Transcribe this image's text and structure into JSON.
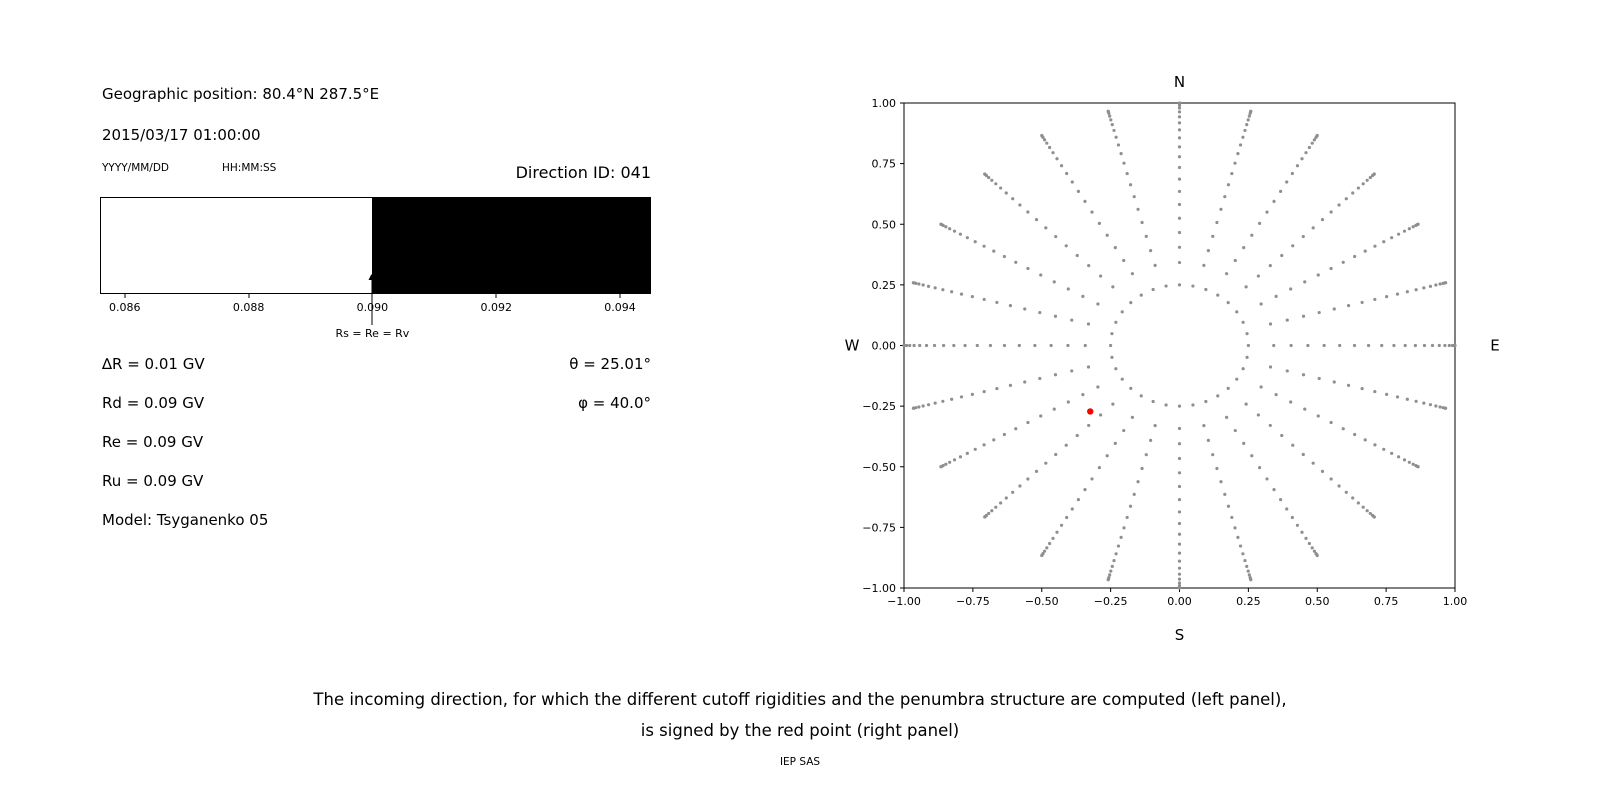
{
  "header": {
    "geo_position": "Geographic position: 80.4°N 287.5°E",
    "datetime": "2015/03/17 01:00:00",
    "date_format_label": "YYYY/MM/DD",
    "time_format_label": "HH:MM:SS",
    "direction_id": "Direction ID: 041"
  },
  "left_panel": {
    "values": [
      "∆R = 0.01 GV",
      "Rd = 0.09 GV",
      "Re = 0.09 GV",
      "Ru = 0.09 GV",
      "Model: Tsyganenko 05"
    ],
    "theta": "θ = 25.01°",
    "phi": "φ = 40.0°"
  },
  "caption": {
    "line1": "The incoming direction, for which the different cutoff rigidities and the penumbra structure are computed (left panel),",
    "line2": "is signed by the red point (right panel)"
  },
  "footer": "IEP SAS",
  "chart_data": [
    {
      "type": "area",
      "name": "penumbra-structure",
      "xlim": [
        0.0856,
        0.0945
      ],
      "x_ticks": [
        {
          "v": 0.086,
          "label": "0.086"
        },
        {
          "v": 0.088,
          "label": "0.088"
        },
        {
          "v": 0.09,
          "label": "0.090"
        },
        {
          "v": 0.092,
          "label": "0.092"
        },
        {
          "v": 0.094,
          "label": "0.094"
        }
      ],
      "regions": [
        {
          "name": "allowed-band",
          "from": 0.0856,
          "to": 0.09,
          "color": "#ffffff"
        },
        {
          "name": "forbidden-band",
          "from": 0.09,
          "to": 0.0945,
          "color": "#000000"
        }
      ],
      "annotation": {
        "text": "Rs = Re = Rv",
        "x": 0.09
      },
      "cutoffs": {
        "delta_R_GV": 0.01,
        "Rd_GV": 0.09,
        "Re_GV": 0.09,
        "Ru_GV": 0.09,
        "model": "Tsyganenko 05"
      }
    },
    {
      "type": "scatter",
      "name": "incoming-direction-map",
      "xlim": [
        -1,
        1
      ],
      "ylim": [
        -1,
        1
      ],
      "x_ticks": [
        {
          "v": -1.0,
          "label": "−1.00"
        },
        {
          "v": -0.75,
          "label": "−0.75"
        },
        {
          "v": -0.5,
          "label": "−0.50"
        },
        {
          "v": -0.25,
          "label": "−0.25"
        },
        {
          "v": 0.0,
          "label": "0.00"
        },
        {
          "v": 0.25,
          "label": "0.25"
        },
        {
          "v": 0.5,
          "label": "0.50"
        },
        {
          "v": 0.75,
          "label": "0.75"
        },
        {
          "v": 1.0,
          "label": "1.00"
        }
      ],
      "y_ticks": [
        {
          "v": 1.0,
          "label": "1.00"
        },
        {
          "v": 0.75,
          "label": "0.75"
        },
        {
          "v": 0.5,
          "label": "0.50"
        },
        {
          "v": 0.25,
          "label": "0.25"
        },
        {
          "v": 0.0,
          "label": "0.00"
        },
        {
          "v": -0.25,
          "label": "−0.25"
        },
        {
          "v": -0.5,
          "label": "−0.50"
        },
        {
          "v": -0.75,
          "label": "−0.75"
        },
        {
          "v": -1.0,
          "label": "−1.00"
        }
      ],
      "compass": {
        "top": "N",
        "bottom": "S",
        "left": "W",
        "right": "E"
      },
      "grid_points": {
        "color": "#8f8f8f",
        "ring_radius": 0.25,
        "ring_count": 32,
        "azimuth_count": 24,
        "zenith_start_deg": 20,
        "zenith_end_deg": 90,
        "points_per_ray": 19,
        "radius_rule": "sin(zenith)"
      },
      "red_point": {
        "x": -0.324,
        "y": -0.272,
        "theta_deg": 25.01,
        "phi_deg": 40.0,
        "color": "#ff0000"
      }
    }
  ]
}
